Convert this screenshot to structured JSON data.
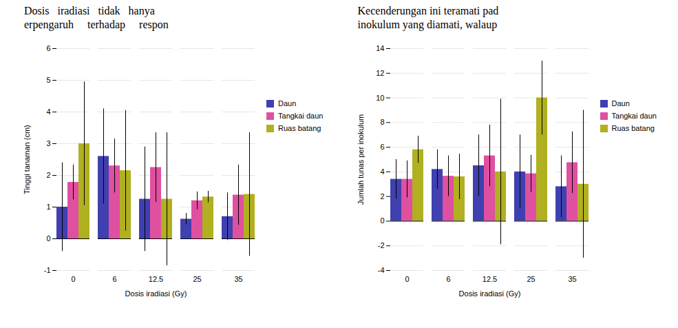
{
  "chart_data": [
    {
      "type": "bar",
      "annotations": [
        "Dosis   iradiasi   tidak   hanya",
        "erpengaruh     terhadap     respon"
      ],
      "categories": [
        "0",
        "6",
        "12.5",
        "25",
        "35"
      ],
      "xlabel": "Dosis iradiasi (Gy)",
      "ylabel": "Tinggi tanaman (cm)",
      "series": [
        {
          "name": "Daun",
          "color": "#4040b0",
          "values": [
            1.0,
            2.6,
            1.25,
            0.62,
            0.7
          ],
          "errors": [
            1.4,
            1.5,
            1.65,
            0.18,
            0.75
          ]
        },
        {
          "name": "Tangkai daun",
          "color": "#e050a0",
          "values": [
            1.78,
            2.3,
            2.25,
            1.2,
            1.38
          ],
          "errors": [
            0.55,
            0.85,
            1.1,
            0.28,
            0.95
          ]
        },
        {
          "name": "Ruas batang",
          "color": "#b0b020",
          "values": [
            3.0,
            2.15,
            1.25,
            1.32,
            1.4
          ],
          "errors": [
            1.95,
            1.9,
            2.1,
            0.18,
            1.95
          ]
        }
      ],
      "ylim": [
        -1,
        6
      ],
      "yticks": [
        -1,
        0,
        1,
        2,
        3,
        4,
        5,
        6
      ],
      "grid": true,
      "legend": "right"
    },
    {
      "type": "bar",
      "annotations": [
        "Kecenderungan ini teramati pad",
        "inokulum yang diamati, walaup"
      ],
      "categories": [
        "0",
        "6",
        "12.5",
        "25",
        "35"
      ],
      "xlabel": "Dosis iradiasi (Gy)",
      "ylabel": "Jumlah tunas per inokulum",
      "series": [
        {
          "name": "Daun",
          "color": "#4040b0",
          "values": [
            3.4,
            4.2,
            4.5,
            4.0,
            2.8
          ],
          "errors": [
            1.6,
            1.6,
            2.5,
            3.0,
            2.5
          ]
        },
        {
          "name": "Tangkai daun",
          "color": "#e050a0",
          "values": [
            3.4,
            3.65,
            5.3,
            3.85,
            4.75
          ],
          "errors": [
            1.5,
            1.65,
            2.5,
            1.5,
            2.5
          ]
        },
        {
          "name": "Ruas batang",
          "color": "#b0b020",
          "values": [
            5.8,
            3.6,
            4.0,
            10.0,
            3.0
          ],
          "errors": [
            1.1,
            1.85,
            5.9,
            3.0,
            6.0
          ]
        }
      ],
      "ylim": [
        -4,
        14
      ],
      "yticks": [
        -4,
        -2,
        0,
        2,
        4,
        6,
        8,
        10,
        12,
        14
      ],
      "grid": true,
      "legend": "right"
    }
  ]
}
